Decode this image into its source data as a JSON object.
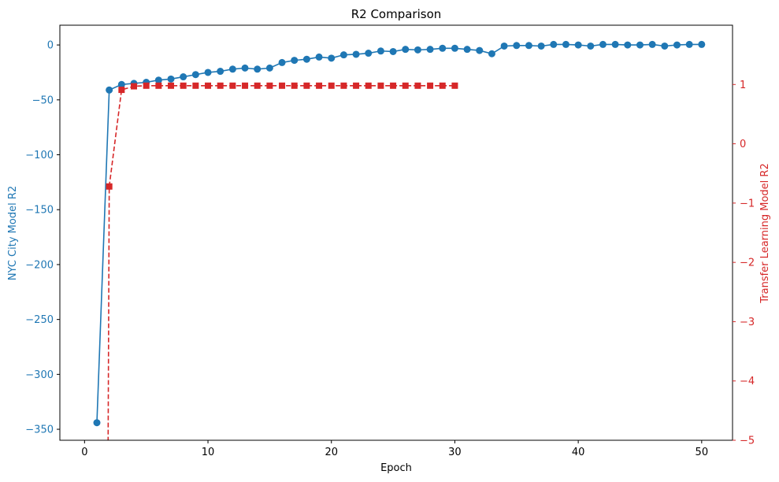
{
  "chart_data": {
    "type": "line",
    "title": "R2 Comparison",
    "xlabel": "Epoch",
    "ylabel_left": "NYC City Model R2",
    "ylabel_right": "Transfer Learning Model R2",
    "xlim": [
      -2,
      52.5
    ],
    "ylim_left": [
      -360,
      18
    ],
    "ylim_right": [
      -5,
      2
    ],
    "x_ticks": [
      0,
      10,
      20,
      30,
      40,
      50
    ],
    "y_left_ticks": [
      0,
      -50,
      -100,
      -150,
      -200,
      -250,
      -300,
      -350
    ],
    "y_right_ticks": [
      1,
      0,
      -1,
      -2,
      -3,
      -4,
      -5
    ],
    "colors": {
      "left": "#1f77b4",
      "right": "#d62728"
    },
    "series": [
      {
        "name": "NYC City Model R2",
        "axis": "left",
        "style": "solid",
        "marker": "circle",
        "x": [
          1,
          2,
          3,
          4,
          5,
          6,
          7,
          8,
          9,
          10,
          11,
          12,
          13,
          14,
          15,
          16,
          17,
          18,
          19,
          20,
          21,
          22,
          23,
          24,
          25,
          26,
          27,
          28,
          29,
          30,
          31,
          32,
          33,
          34,
          35,
          36,
          37,
          38,
          39,
          40,
          41,
          42,
          43,
          44,
          45,
          46,
          47,
          48,
          49,
          50
        ],
        "values": [
          -344,
          -41,
          -36,
          -35,
          -34,
          -32,
          -31,
          -29,
          -27,
          -25,
          -24,
          -22,
          -21,
          -22,
          -21,
          -16,
          -14,
          -13,
          -11,
          -12,
          -9,
          -8.5,
          -7.5,
          -5.5,
          -6,
          -4,
          -4.5,
          -4,
          -3,
          -3,
          -4,
          -5,
          -8,
          -1,
          -0.5,
          -0.5,
          -1,
          0.5,
          0.5,
          0,
          -1,
          0.5,
          0.5,
          0,
          0,
          0.5,
          -1,
          0,
          0.5,
          0.5
        ]
      },
      {
        "name": "Transfer Learning Model R2",
        "axis": "right",
        "style": "dashed",
        "marker": "square",
        "x": [
          2,
          3,
          4,
          5,
          6,
          7,
          8,
          9,
          10,
          11,
          12,
          13,
          14,
          15,
          16,
          17,
          18,
          19,
          20,
          21,
          22,
          23,
          24,
          25,
          26,
          27,
          28,
          29,
          30
        ],
        "values": [
          -0.72,
          0.91,
          0.97,
          0.98,
          0.98,
          0.98,
          0.98,
          0.98,
          0.98,
          0.98,
          0.98,
          0.98,
          0.98,
          0.98,
          0.98,
          0.98,
          0.98,
          0.98,
          0.98,
          0.98,
          0.98,
          0.98,
          0.98,
          0.98,
          0.98,
          0.98,
          0.98,
          0.98,
          0.98
        ],
        "line_from_below": {
          "x": 1.9,
          "value": -5.5
        }
      }
    ]
  }
}
